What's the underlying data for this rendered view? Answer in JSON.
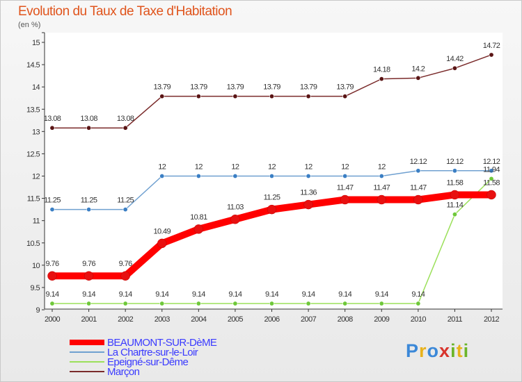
{
  "title": "Evolution du Taux de Taxe d'Habitation",
  "subtitle": "(en %)",
  "brand": "Proxiti",
  "chart_data": {
    "type": "line",
    "title": "Evolution du Taux de Taxe d'Habitation",
    "subtitle": "(en %)",
    "xlabel": "",
    "ylabel": "",
    "x": [
      "2000",
      "2001",
      "2002",
      "2003",
      "2004",
      "2005",
      "2006",
      "2007",
      "2008",
      "2009",
      "2010",
      "2011",
      "2012"
    ],
    "ylim": [
      9,
      15
    ],
    "yticks": [
      "9",
      "9.5",
      "10",
      "10.5",
      "11",
      "11.5",
      "12",
      "12.5",
      "13",
      "13.5",
      "14",
      "14.5",
      "15"
    ],
    "grid": false,
    "legend_position": "bottom-left",
    "series": [
      {
        "name": "BEAUMONT-SUR-DèME",
        "color": "#ff0000",
        "marker": "#e81010",
        "values": [
          9.76,
          9.76,
          9.76,
          10.49,
          10.81,
          11.03,
          11.25,
          11.36,
          11.47,
          11.47,
          11.47,
          11.58,
          11.58
        ],
        "labels": [
          "9.76",
          "9.76",
          "9.76",
          "10.49",
          "10.81",
          "11.03",
          "11.25",
          "11.36",
          "11.47",
          "11.47",
          "11.47",
          "11.58",
          "11.58"
        ]
      },
      {
        "name": "La Chartre-sur-le-Loir",
        "color": "#6fa0d0",
        "marker": "#3b7fc4",
        "values": [
          11.25,
          11.25,
          11.25,
          12,
          12,
          12,
          12,
          12,
          12,
          12,
          12.12,
          12.12,
          12.12
        ],
        "labels": [
          "11.25",
          "11.25",
          "11.25",
          "12",
          "12",
          "12",
          "12",
          "12",
          "12",
          "12",
          "12.12",
          "12.12",
          "12.12"
        ]
      },
      {
        "name": "Epeigné-sur-Dême",
        "color": "#9be05a",
        "marker": "#6fc83a",
        "values": [
          9.14,
          9.14,
          9.14,
          9.14,
          9.14,
          9.14,
          9.14,
          9.14,
          9.14,
          9.14,
          9.14,
          11.14,
          11.94
        ],
        "labels": [
          "9.14",
          "9.14",
          "9.14",
          "9.14",
          "9.14",
          "9.14",
          "9.14",
          "9.14",
          "9.14",
          "9.14",
          "9.14",
          "11.14",
          "11.94"
        ]
      },
      {
        "name": "Marçon",
        "color": "#7a2a2a",
        "marker": "#5a1515",
        "values": [
          13.08,
          13.08,
          13.08,
          13.79,
          13.79,
          13.79,
          13.79,
          13.79,
          13.79,
          14.18,
          14.2,
          14.42,
          14.72
        ],
        "labels": [
          "13.08",
          "13.08",
          "13.08",
          "13.79",
          "13.79",
          "13.79",
          "13.79",
          "13.79",
          "13.79",
          "14.18",
          "14.2",
          "14.42",
          "14.72"
        ]
      }
    ]
  }
}
